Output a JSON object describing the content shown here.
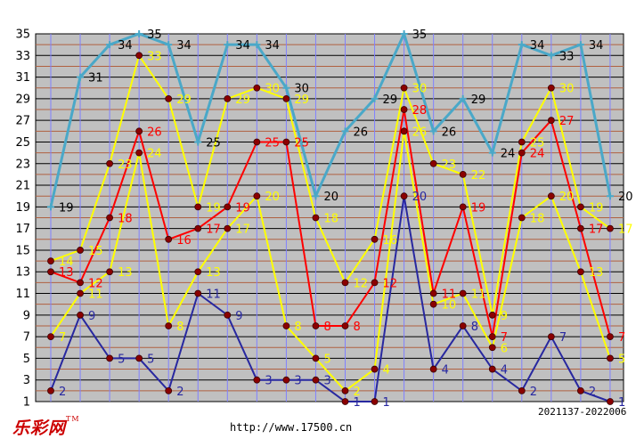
{
  "footer": {
    "logo": "乐彩网",
    "logo_mark": "TM",
    "url": "http://www.17500.cn",
    "range": "2021137-2022006"
  },
  "colors": {
    "plot_bg": "#c0c0c0",
    "grid_odd": "#000000",
    "grid_even": "#b06040",
    "vgrid": "#8080ff"
  },
  "chart_data": {
    "type": "line",
    "yticks": [
      "1",
      "3",
      "5",
      "7",
      "9",
      "11",
      "13",
      "15",
      "17",
      "19",
      "21",
      "23",
      "25",
      "27",
      "29",
      "31",
      "33",
      "35"
    ],
    "ylim": [
      1,
      35
    ],
    "n_points": 20,
    "series": [
      {
        "color": "#4aa8c8",
        "label_color": "#000000",
        "values": [
          19,
          31,
          34,
          35,
          34,
          25,
          34,
          34,
          30,
          20,
          26,
          29,
          35,
          26,
          29,
          24,
          34,
          33,
          34,
          20
        ]
      },
      {
        "color": "#ffff00",
        "label_color": "#ffff00",
        "values": [
          14,
          15,
          23,
          33,
          29,
          19,
          29,
          30,
          29,
          18,
          12,
          16,
          30,
          23,
          22,
          9,
          25,
          30,
          19,
          17
        ]
      },
      {
        "color": "#ff0000",
        "label_color": "#ff0000",
        "values": [
          13,
          12,
          18,
          26,
          16,
          17,
          19,
          25,
          25,
          8,
          8,
          12,
          28,
          11,
          19,
          7,
          24,
          27,
          17,
          7
        ]
      },
      {
        "color": "#ffff00",
        "label_color": "#ffff00",
        "values": [
          7,
          11,
          13,
          24,
          8,
          13,
          17,
          20,
          8,
          5,
          2,
          4,
          26,
          10,
          11,
          6,
          18,
          20,
          13,
          5
        ]
      },
      {
        "color": "#2828a0",
        "label_color": "#2828a0",
        "values": [
          2,
          9,
          5,
          5,
          2,
          11,
          9,
          3,
          3,
          3,
          1,
          1,
          20,
          4,
          8,
          4,
          2,
          7,
          2,
          1
        ]
      }
    ]
  }
}
